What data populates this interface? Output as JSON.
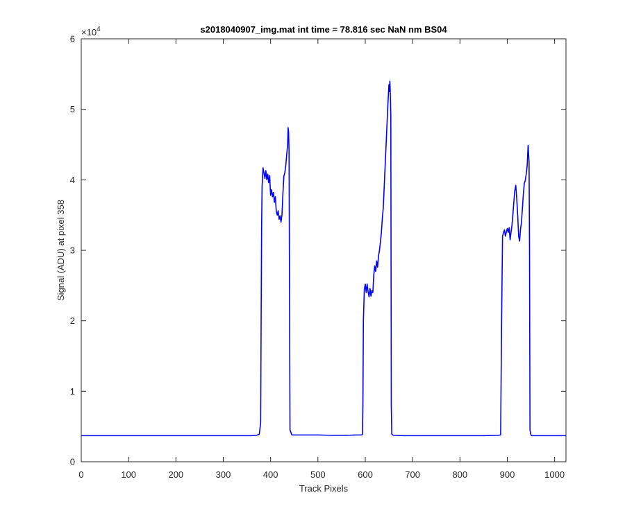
{
  "chart_data": {
    "type": "line",
    "title": "s2018040907_img.mat int time = 78.816 sec  NaN nm BS04",
    "xlabel": "Track Pixels",
    "ylabel": "Signal (ADU) at pixel 358",
    "y_exponent_base": "×10",
    "y_exponent": "4",
    "xlim": [
      0,
      1024
    ],
    "ylim": [
      0,
      60000
    ],
    "xticks": [
      0,
      100,
      200,
      300,
      400,
      500,
      600,
      700,
      800,
      900,
      1000
    ],
    "xtick_labels": [
      "0",
      "100",
      "200",
      "300",
      "400",
      "500",
      "600",
      "700",
      "800",
      "900",
      "1000"
    ],
    "yticks": [
      0,
      10000,
      20000,
      30000,
      40000,
      50000,
      60000
    ],
    "ytick_labels": [
      "0",
      "1",
      "2",
      "3",
      "4",
      "5",
      "6"
    ],
    "grid": false,
    "line_color": "#0000ff",
    "series": [
      {
        "x": [
          0,
          50,
          100,
          150,
          200,
          250,
          300,
          340,
          360,
          370,
          376,
          379,
          380,
          381,
          382,
          384,
          386,
          388,
          390,
          392,
          394,
          396,
          398,
          400,
          402,
          404,
          406,
          408,
          410,
          412,
          414,
          416,
          418,
          420,
          422,
          424,
          426,
          428,
          430,
          432,
          434,
          436,
          437,
          438,
          439,
          441,
          445,
          450,
          470,
          500,
          530,
          560,
          580,
          590,
          594,
          595,
          596,
          598,
          600,
          602,
          604,
          606,
          608,
          610,
          612,
          614,
          616,
          618,
          620,
          622,
          624,
          626,
          628,
          630,
          632,
          634,
          636,
          638,
          640,
          642,
          644,
          646,
          648,
          650,
          651,
          652,
          653,
          654,
          655,
          656,
          658,
          660,
          680,
          700,
          750,
          800,
          850,
          880,
          886,
          888,
          890,
          892,
          894,
          896,
          898,
          900,
          902,
          904,
          906,
          908,
          910,
          912,
          914,
          916,
          918,
          920,
          922,
          924,
          926,
          928,
          930,
          932,
          934,
          936,
          938,
          940,
          942,
          944,
          946,
          947,
          948,
          950,
          952,
          960,
          1000,
          1024
        ],
        "y": [
          3700,
          3700,
          3700,
          3700,
          3700,
          3700,
          3700,
          3700,
          3700,
          3750,
          3900,
          5500,
          20000,
          33000,
          39000,
          41700,
          41000,
          40200,
          41300,
          40000,
          40800,
          39600,
          40600,
          37800,
          38600,
          37600,
          38200,
          36800,
          37600,
          35500,
          35000,
          35600,
          34400,
          34900,
          34000,
          35000,
          38000,
          40500,
          41000,
          42000,
          43500,
          45000,
          47400,
          46800,
          44000,
          4500,
          3800,
          3800,
          3800,
          3800,
          3750,
          3750,
          3800,
          3800,
          3850,
          8000,
          20000,
          24500,
          25200,
          24000,
          25200,
          24100,
          23400,
          24600,
          23500,
          24300,
          24000,
          26500,
          27800,
          27000,
          28500,
          27600,
          29200,
          30000,
          31200,
          32500,
          34500,
          36000,
          39000,
          42000,
          45000,
          48000,
          51000,
          53500,
          52500,
          54000,
          52000,
          49000,
          8000,
          3900,
          3800,
          3750,
          3700,
          3700,
          3700,
          3700,
          3700,
          3750,
          3800,
          20000,
          32000,
          32500,
          32900,
          32000,
          32600,
          33100,
          32500,
          33200,
          31500,
          32600,
          33600,
          35200,
          37000,
          38500,
          39200,
          37300,
          35000,
          32000,
          31300,
          33000,
          34000,
          36000,
          38000,
          39500,
          39900,
          40800,
          42000,
          44900,
          42500,
          30000,
          4500,
          3800,
          3700,
          3700,
          3700,
          3700
        ]
      }
    ]
  }
}
